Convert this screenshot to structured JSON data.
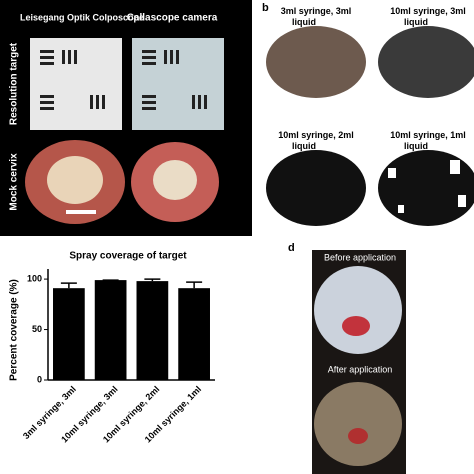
{
  "panel_a": {
    "columns": [
      "Leisegang Optik Colposcope",
      "Callascope camera"
    ],
    "rows": [
      "Resolution target",
      "Mock cervix"
    ]
  },
  "panel_b": {
    "label": "b",
    "dishes": [
      "3ml syringe, 3ml liquid",
      "10ml syringe, 3ml liquid",
      "10ml syringe, 2ml liquid",
      "10ml syringe, 1ml liquid"
    ]
  },
  "chart_data": {
    "type": "bar",
    "title": "Spray coverage of target",
    "y_label": "Percent coverage (%)",
    "categories": [
      "3ml syringe, 3ml",
      "10ml syringe, 3ml",
      "10ml syringe, 2ml",
      "10ml syringe, 1ml"
    ],
    "values": [
      91,
      99,
      98,
      91
    ],
    "errors": [
      5,
      0,
      2,
      6
    ],
    "color": "#000000",
    "ylim": [
      0,
      110
    ],
    "yticks": [
      0,
      50,
      100
    ]
  },
  "panel_d": {
    "label": "d",
    "captions": [
      "Before application",
      "After application"
    ]
  }
}
